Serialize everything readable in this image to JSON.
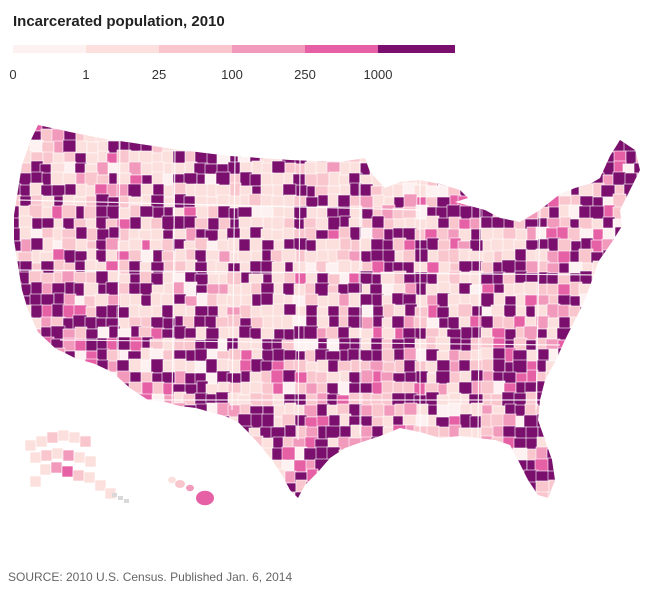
{
  "title": "Incarcerated population, 2010",
  "legend": {
    "bins": [
      {
        "label": "0",
        "color": "#fdf2f1"
      },
      {
        "label": "1",
        "color": "#fce0dd"
      },
      {
        "label": "25",
        "color": "#f9c6ce"
      },
      {
        "label": "100",
        "color": "#f29abb"
      },
      {
        "label": "250",
        "color": "#e660a6"
      },
      {
        "label": "1000",
        "color": "#7a0f6d"
      }
    ]
  },
  "map": {
    "regions": [
      "contiguous-us",
      "alaska",
      "hawaii"
    ],
    "colors": {
      "land_default": "#fce0dd",
      "border": "#ffffff",
      "water": "#ffffff",
      "no_data": "#d9d9d9"
    }
  },
  "source": "SOURCE: 2010 U.S. Census. Published Jan. 6, 2014"
}
